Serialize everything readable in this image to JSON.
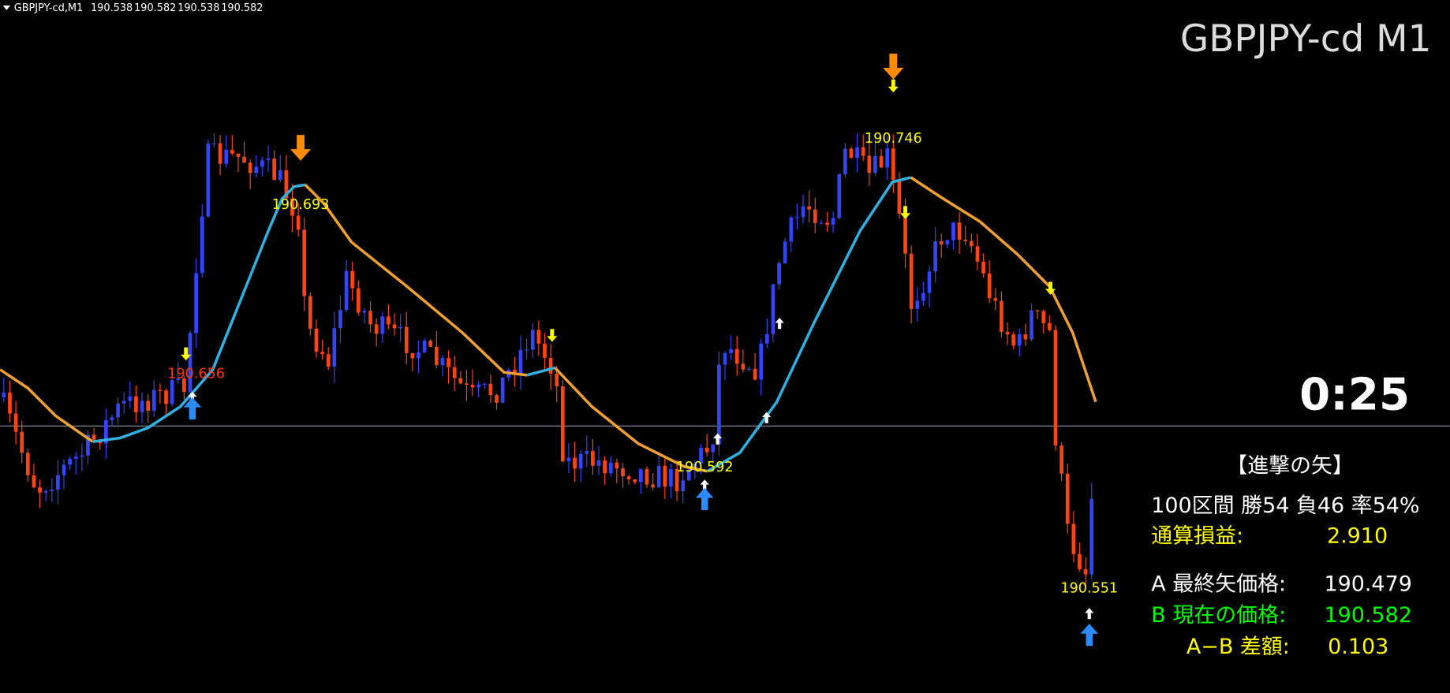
{
  "header": {
    "symbol": "GBPJPY-cd,M1",
    "prices": [
      "190.538",
      "190.582",
      "190.538",
      "190.582"
    ]
  },
  "title": "GBPJPY-cd M1",
  "timer": "0:25",
  "price_labels": [
    "190.656",
    "190.693",
    "190.592",
    "190.746",
    "190.551"
  ],
  "panel": {
    "heading": "【進撃の矢】",
    "stats": "100区間 勝54 負46 率54%",
    "total_label": "通算損益:",
    "total_value": "2.910",
    "a_label": "A 最終矢価格:",
    "a_value": "190.479",
    "b_label": "B 現在の価格:",
    "b_value": "190.582",
    "diff_label": "A−B 差額:",
    "diff_value": "0.103"
  }
}
